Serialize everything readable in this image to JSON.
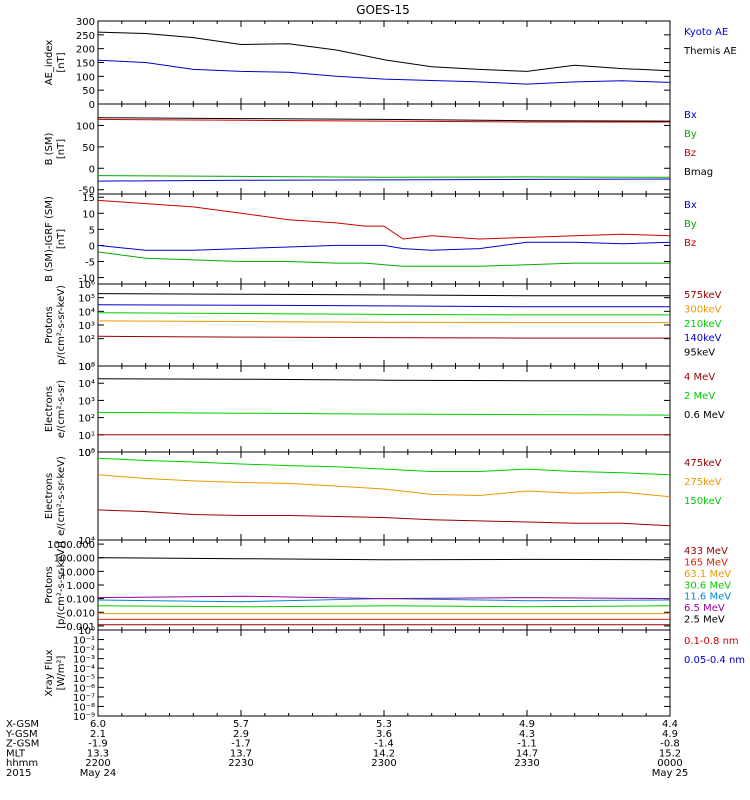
{
  "title": "GOES-15",
  "x_axis": {
    "row_labels": [
      "X-GSM",
      "Y-GSM",
      "Z-GSM",
      "MLT",
      "hhmm",
      "2015"
    ],
    "columns": [
      [
        "6.0",
        "2.1",
        "-1.9",
        "13.3",
        "2200",
        "May 24"
      ],
      [
        "5.7",
        "2.9",
        "-1.7",
        "13.7",
        "2230",
        ""
      ],
      [
        "5.3",
        "3.6",
        "-1.4",
        "14.2",
        "2300",
        ""
      ],
      [
        "4.9",
        "4.3",
        "-1.1",
        "14.7",
        "2330",
        ""
      ],
      [
        "4.4",
        "4.9",
        "-0.8",
        "15.2",
        "0000",
        "May 25"
      ]
    ]
  },
  "chart_data": [
    {
      "type": "line",
      "ylabel": [
        "AE_index",
        "[nT]"
      ],
      "ylim": [
        0,
        300
      ],
      "yscale": "linear",
      "yticks": [
        0,
        50,
        100,
        150,
        200,
        250,
        300
      ],
      "ytick_labels": [
        "0",
        "50",
        "100",
        "150",
        "200",
        "250",
        "300"
      ],
      "x": [
        0,
        5,
        10,
        15,
        20,
        25,
        30,
        35,
        40,
        45,
        50,
        55,
        60
      ],
      "series": [
        {
          "name": "Kyoto AE",
          "color": "#0000cc",
          "values": [
            158,
            150,
            125,
            118,
            115,
            100,
            90,
            85,
            80,
            72,
            80,
            84,
            78
          ]
        },
        {
          "name": "Themis AE",
          "color": "#000000",
          "values": [
            260,
            255,
            240,
            215,
            218,
            195,
            160,
            135,
            125,
            118,
            140,
            128,
            120
          ]
        }
      ]
    },
    {
      "type": "line",
      "ylabel": [
        "B (SM)",
        "[nT]"
      ],
      "ylim": [
        -60,
        150
      ],
      "yscale": "linear",
      "yticks": [
        -50,
        0,
        50,
        100
      ],
      "ytick_labels": [
        "-50",
        "0",
        "50",
        "100"
      ],
      "x": [
        0,
        15,
        30,
        45,
        60
      ],
      "series": [
        {
          "name": "Bx",
          "color": "#0000cc",
          "values": [
            -30,
            -28,
            -27,
            -26,
            -25
          ]
        },
        {
          "name": "By",
          "color": "#00aa00",
          "values": [
            -17,
            -19,
            -21,
            -20,
            -21
          ]
        },
        {
          "name": "Bz",
          "color": "#cc0000",
          "values": [
            114,
            112,
            110,
            108,
            108
          ]
        },
        {
          "name": "Bmag",
          "color": "#000000",
          "values": [
            118,
            116,
            114,
            111,
            110
          ]
        }
      ]
    },
    {
      "type": "line",
      "ylabel": [
        "B (SM)-IGRF (SM)",
        "[nT]"
      ],
      "ylim": [
        -12,
        16
      ],
      "yscale": "linear",
      "yticks": [
        -10,
        -5,
        0,
        5,
        10,
        15
      ],
      "ytick_labels": [
        "-10",
        "-5",
        "0",
        "5",
        "10",
        "15"
      ],
      "x": [
        0,
        5,
        10,
        15,
        20,
        25,
        28,
        30,
        32,
        35,
        40,
        45,
        50,
        55,
        60
      ],
      "series": [
        {
          "name": "Bx",
          "color": "#0000cc",
          "values": [
            0,
            -1.5,
            -1.5,
            -1,
            -0.5,
            0,
            0,
            0,
            -1,
            -1.5,
            -1,
            1,
            1,
            0.5,
            1
          ]
        },
        {
          "name": "By",
          "color": "#00aa00",
          "values": [
            -2,
            -4,
            -4.5,
            -5,
            -5,
            -5.5,
            -5.5,
            -6,
            -6.5,
            -6.5,
            -6.5,
            -6,
            -5.5,
            -5.5,
            -5.5
          ]
        },
        {
          "name": "Bz",
          "color": "#cc0000",
          "values": [
            14,
            13,
            12,
            10,
            8,
            7,
            6,
            6,
            2,
            3,
            2,
            2.5,
            3,
            3.5,
            3
          ]
        }
      ]
    },
    {
      "type": "line",
      "ylabel": [
        "Protons",
        "p/(cm²-s-sr-keV)"
      ],
      "ylim": [
        1,
        1000000
      ],
      "yscale": "log",
      "yticks": [
        1,
        100,
        1000,
        10000,
        100000,
        1000000
      ],
      "ytick_labels": [
        "10⁰",
        "10²",
        "10³",
        "10⁴",
        "10⁵",
        "10⁶"
      ],
      "x": [
        0,
        15,
        30,
        45,
        60
      ],
      "series": [
        {
          "name": "575keV",
          "color": "#990000",
          "values": [
            150,
            130,
            120,
            110,
            110
          ]
        },
        {
          "name": "300keV",
          "color": "#ee9900",
          "values": [
            2000,
            1800,
            1600,
            1500,
            1500
          ]
        },
        {
          "name": "210keV",
          "color": "#00cc00",
          "values": [
            8000,
            7000,
            6000,
            5500,
            5500
          ]
        },
        {
          "name": "140keV",
          "color": "#0000cc",
          "values": [
            30000,
            28000,
            25000,
            22000,
            22000
          ]
        },
        {
          "name": "95keV",
          "color": "#000000",
          "values": [
            200000,
            180000,
            160000,
            140000,
            140000
          ]
        }
      ]
    },
    {
      "type": "line",
      "ylabel": [
        "Electrons",
        "e/(cm²-s-sr)"
      ],
      "ylim": [
        1,
        100000
      ],
      "yscale": "log",
      "yticks": [
        1,
        10,
        100,
        1000,
        10000,
        100000
      ],
      "ytick_labels": [
        "10⁰",
        "10¹",
        "10²",
        "10³",
        "10⁴",
        "10⁵"
      ],
      "x": [
        0,
        15,
        30,
        45,
        60
      ],
      "series": [
        {
          "name": "4 MeV",
          "color": "#990000",
          "values": [
            10,
            10,
            10,
            10,
            10
          ]
        },
        {
          "name": "2 MeV",
          "color": "#00cc00",
          "values": [
            200,
            180,
            160,
            150,
            140
          ]
        },
        {
          "name": "0.6 MeV",
          "color": "#000000",
          "values": [
            18000,
            17000,
            15000,
            14000,
            14000
          ]
        }
      ]
    },
    {
      "type": "line",
      "ylabel": [
        "Electrons",
        "e/(cm²-s-sr-keV)"
      ],
      "ylim": [
        10000,
        100000
      ],
      "yscale": "log",
      "yticks": [
        10000,
        100000
      ],
      "ytick_labels": [
        "10⁴",
        "10⁵"
      ],
      "x": [
        0,
        5,
        10,
        15,
        20,
        25,
        30,
        35,
        40,
        45,
        50,
        55,
        60
      ],
      "series": [
        {
          "name": "475keV",
          "color": "#990000",
          "values": [
            22000,
            21000,
            19500,
            19000,
            19000,
            18500,
            18000,
            17000,
            16500,
            16000,
            15500,
            15500,
            14500
          ]
        },
        {
          "name": "275keV",
          "color": "#ee9900",
          "values": [
            55000,
            50000,
            47000,
            45000,
            44000,
            41000,
            38000,
            33000,
            32000,
            36000,
            34000,
            35000,
            31000
          ]
        },
        {
          "name": "150keV",
          "color": "#00cc00",
          "values": [
            85000,
            80000,
            77000,
            73000,
            70000,
            68000,
            64000,
            60000,
            60000,
            64000,
            60000,
            58000,
            55000
          ]
        }
      ]
    },
    {
      "type": "line",
      "ylabel": [
        "Protons",
        "[p/(cm²-s-sr-keV)]"
      ],
      "ylim": [
        0.0005,
        2000
      ],
      "yscale": "log",
      "yticks": [
        0.001,
        0.01,
        0.1,
        1,
        10,
        100,
        1000
      ],
      "ytick_labels": [
        "0.001",
        "0.010",
        "0.100",
        "1.000",
        "10.000",
        "100.000",
        "1000.000"
      ],
      "x": [
        0,
        15,
        30,
        45,
        60
      ],
      "series": [
        {
          "name": "433 MeV",
          "color": "#990000",
          "values": [
            0.0012,
            0.0012,
            0.0012,
            0.0012,
            0.0012
          ]
        },
        {
          "name": "165 MeV",
          "color": "#dd2200",
          "values": [
            0.003,
            0.003,
            0.003,
            0.003,
            0.003
          ]
        },
        {
          "name": "63.1 MeV",
          "color": "#ee9900",
          "values": [
            0.008,
            0.008,
            0.008,
            0.008,
            0.008
          ]
        },
        {
          "name": "30.6 MeV",
          "color": "#00cc00",
          "values": [
            0.03,
            0.025,
            0.03,
            0.025,
            0.03
          ]
        },
        {
          "name": "11.6 MeV",
          "color": "#0088cc",
          "values": [
            0.08,
            0.06,
            0.1,
            0.07,
            0.08
          ]
        },
        {
          "name": "6.5 MeV",
          "color": "#990099",
          "values": [
            0.12,
            0.15,
            0.1,
            0.12,
            0.1
          ]
        },
        {
          "name": "2.5 MeV",
          "color": "#000000",
          "values": [
            100,
            85,
            70,
            75,
            72
          ]
        }
      ]
    },
    {
      "type": "line",
      "ylabel": [
        "Xray Flux",
        "[W/m²]"
      ],
      "ylim": [
        1e-09,
        1
      ],
      "yscale": "log",
      "yticks": [
        1e-09,
        1e-08,
        1e-07,
        1e-06,
        1e-05,
        0.0001,
        0.001,
        0.01,
        0.1,
        1
      ],
      "ytick_labels": [
        "10⁻⁹",
        "10⁻⁸",
        "10⁻⁷",
        "10⁻⁶",
        "10⁻⁵",
        "10⁻⁴",
        "10⁻³",
        "10⁻²",
        "10⁻¹",
        "10⁰"
      ],
      "x": [],
      "series": [
        {
          "name": "0.1-0.8 nm",
          "color": "#cc0000",
          "values": []
        },
        {
          "name": "0.05-0.4 nm",
          "color": "#0000cc",
          "values": []
        }
      ]
    }
  ]
}
